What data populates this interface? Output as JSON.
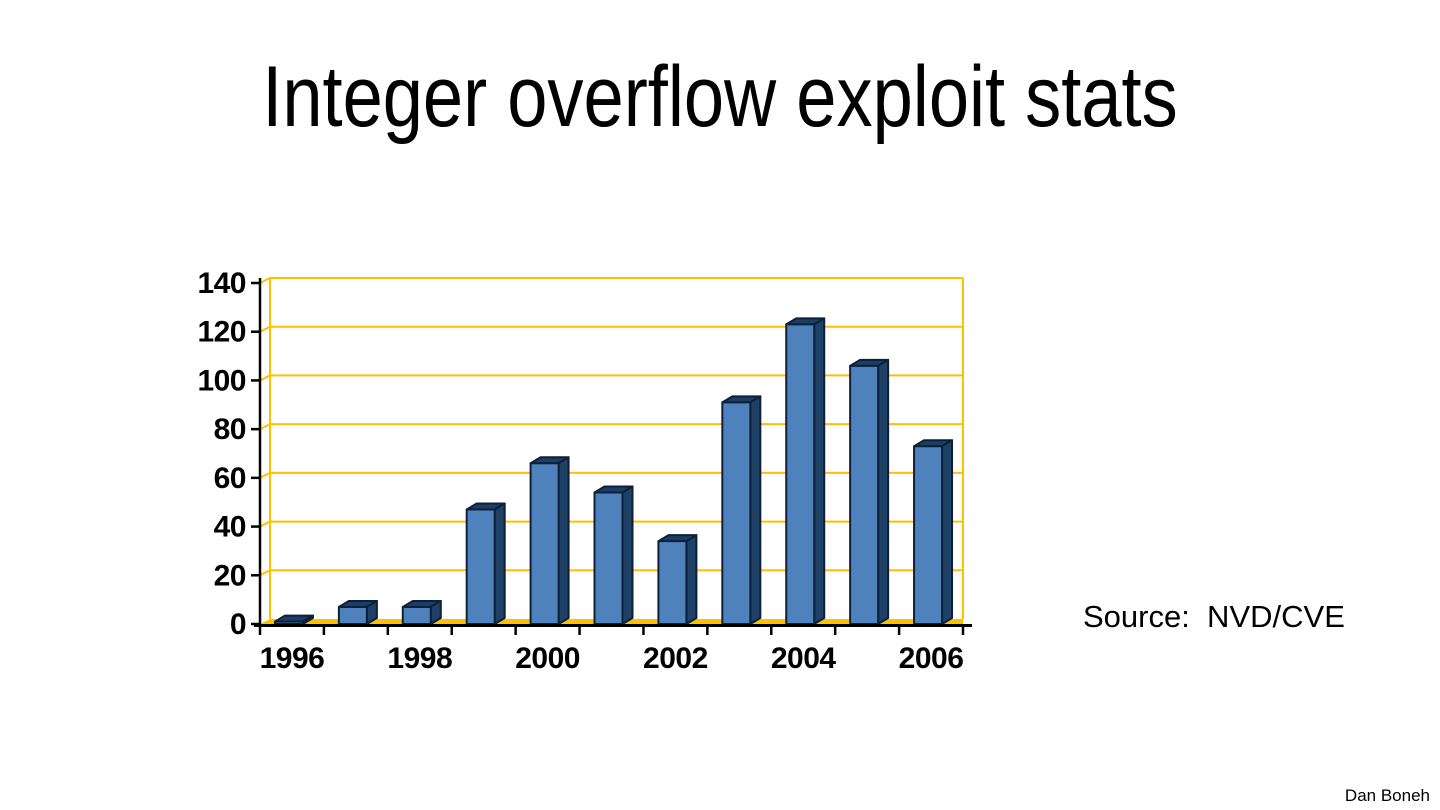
{
  "slide": {
    "title": "Integer overflow exploit stats",
    "source_label": "Source:  NVD/CVE",
    "author": "Dan Boneh"
  },
  "chart_data": {
    "type": "bar",
    "style": "3d-column",
    "categories": [
      "1996",
      "1997",
      "1998",
      "1999",
      "2000",
      "2001",
      "2002",
      "2003",
      "2004",
      "2005",
      "2006"
    ],
    "values": [
      1,
      7,
      7,
      47,
      66,
      54,
      34,
      91,
      123,
      106,
      73
    ],
    "x_tick_labels": [
      "1996",
      "1998",
      "2000",
      "2002",
      "2004",
      "2006"
    ],
    "y_ticks": [
      0,
      20,
      40,
      60,
      80,
      100,
      120,
      140
    ],
    "ylim": [
      0,
      140
    ],
    "xlabel": "",
    "ylabel": "",
    "grid": true,
    "legend": false,
    "colors": {
      "bar_front": "#4f81bd",
      "bar_side": "#1f4067",
      "bar_top": "#1d3d66",
      "bar_outline": "#0c2038",
      "gridline": "#ffc000",
      "axis": "#000000",
      "label": "#000000"
    }
  }
}
